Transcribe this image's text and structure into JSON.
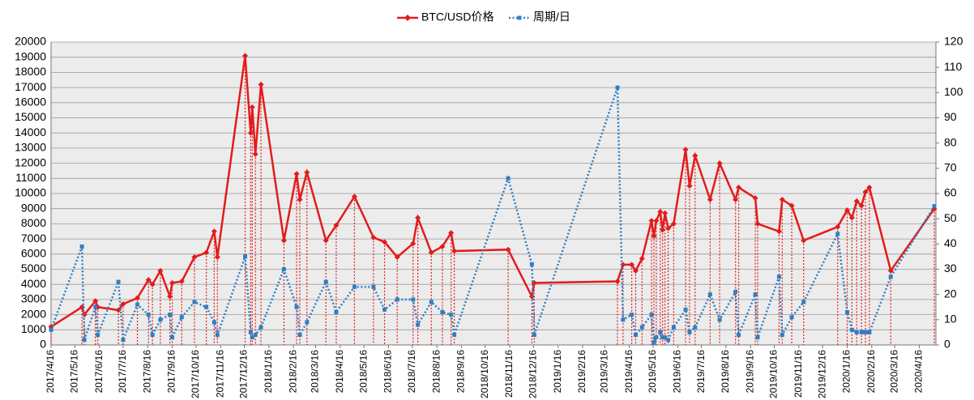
{
  "chart_data": {
    "type": "line",
    "x": [
      "2017/4/16",
      "2017/5/25",
      "2017/5/28",
      "2017/6/11",
      "2017/6/14",
      "2017/7/10",
      "2017/7/16",
      "2017/8/3",
      "2017/8/17",
      "2017/8/22",
      "2017/9/1",
      "2017/9/13",
      "2017/9/16",
      "2017/9/28",
      "2017/10/14",
      "2017/10/29",
      "2017/11/8",
      "2017/11/12",
      "2017/12/17",
      "2017/12/24",
      "2017/12/26",
      "2017/12/30",
      "2018/1/6",
      "2018/2/4",
      "2018/2/20",
      "2018/2/24",
      "2018/3/5",
      "2018/3/29",
      "2018/4/11",
      "2018/5/4",
      "2018/5/28",
      "2018/6/11",
      "2018/6/27",
      "2018/7/17",
      "2018/7/23",
      "2018/8/9",
      "2018/8/23",
      "2018/9/3",
      "2018/9/7",
      "2018/11/14",
      "2018/12/14",
      "2018/12/17",
      "2019/4/1",
      "2019/4/8",
      "2019/4/19",
      "2019/4/24",
      "2019/5/2",
      "2019/5/14",
      "2019/5/17",
      "2019/5/20",
      "2019/5/25",
      "2019/5/28",
      "2019/5/31",
      "2019/6/4",
      "2019/6/11",
      "2019/6/26",
      "2019/7/1",
      "2019/7/8",
      "2019/7/27",
      "2019/8/8",
      "2019/8/28",
      "2019/9/1",
      "2019/9/22",
      "2019/9/25",
      "2019/10/22",
      "2019/10/26",
      "2019/11/7",
      "2019/11/22",
      "2020/1/4",
      "2020/1/16",
      "2020/1/22",
      "2020/1/28",
      "2020/2/3",
      "2020/2/8",
      "2020/2/13",
      "2020/3/11",
      "2020/5/5"
    ],
    "series": [
      {
        "name": "BTC/USD价格",
        "color": "#e41b1b",
        "values": [
          1200,
          2500,
          2000,
          2900,
          2500,
          2300,
          2700,
          3100,
          4300,
          4000,
          4900,
          3200,
          4100,
          4200,
          5800,
          6100,
          7500,
          5800,
          19100,
          14000,
          15700,
          12600,
          17200,
          6900,
          11300,
          9600,
          11400,
          6900,
          7900,
          9800,
          7100,
          6800,
          5800,
          6700,
          8400,
          6100,
          6500,
          7400,
          6200,
          6300,
          3200,
          4100,
          4200,
          5300,
          5300,
          4900,
          5700,
          8200,
          7200,
          8200,
          8800,
          7600,
          8700,
          7700,
          8000,
          12900,
          10500,
          12500,
          9600,
          12000,
          9600,
          10400,
          9700,
          8000,
          7500,
          9600,
          9200,
          6900,
          7800,
          8900,
          8400,
          9500,
          9200,
          10100,
          10400,
          4900,
          9000
        ]
      },
      {
        "name": "周期/日",
        "color": "#2e7fc4",
        "axis": "y2",
        "values": [
          6,
          39,
          2,
          15,
          4,
          25,
          2,
          16,
          12,
          4,
          10,
          12,
          3,
          11,
          17,
          15,
          9,
          4,
          35,
          5,
          3,
          4,
          7,
          30,
          15,
          4,
          9,
          25,
          13,
          23,
          23,
          14,
          18,
          18,
          8,
          17,
          13,
          12,
          4,
          66,
          32,
          4,
          102,
          10,
          12,
          4,
          7,
          12,
          1,
          3,
          5,
          3,
          3,
          2,
          7,
          14,
          5,
          7,
          20,
          10,
          21,
          4,
          20,
          3,
          27,
          4,
          11,
          17,
          44,
          13,
          6,
          5,
          5,
          5,
          5,
          27,
          55
        ]
      }
    ],
    "xlim": [
      "2017/4/16",
      "2020/5/7"
    ],
    "xticks": [
      "2017/4/16",
      "2017/5/16",
      "2017/6/16",
      "2017/7/16",
      "2017/8/16",
      "2017/9/16",
      "2017/10/16",
      "2017/11/16",
      "2017/12/16",
      "2018/1/16",
      "2018/2/16",
      "2018/3/16",
      "2018/4/16",
      "2018/5/16",
      "2018/6/16",
      "2018/7/16",
      "2018/8/16",
      "2018/9/16",
      "2018/10/16",
      "2018/11/16",
      "2018/12/16",
      "2019/1/16",
      "2019/2/16",
      "2019/3/16",
      "2019/4/16",
      "2019/5/16",
      "2019/6/16",
      "2019/7/16",
      "2019/8/16",
      "2019/9/16",
      "2019/10/16",
      "2019/11/16",
      "2019/12/16",
      "2020/1/16",
      "2020/2/16",
      "2020/3/16",
      "2020/4/16"
    ],
    "ylim": [
      0,
      20000
    ],
    "yticks": [
      0,
      1000,
      2000,
      3000,
      4000,
      5000,
      6000,
      7000,
      8000,
      9000,
      10000,
      11000,
      12000,
      13000,
      14000,
      15000,
      16000,
      17000,
      18000,
      19000,
      20000
    ],
    "y2lim": [
      0,
      120
    ],
    "y2ticks": [
      0,
      10,
      20,
      30,
      40,
      50,
      60,
      70,
      80,
      90,
      100,
      110,
      120
    ],
    "grid": true,
    "drop_lines": true,
    "legend": "top"
  }
}
